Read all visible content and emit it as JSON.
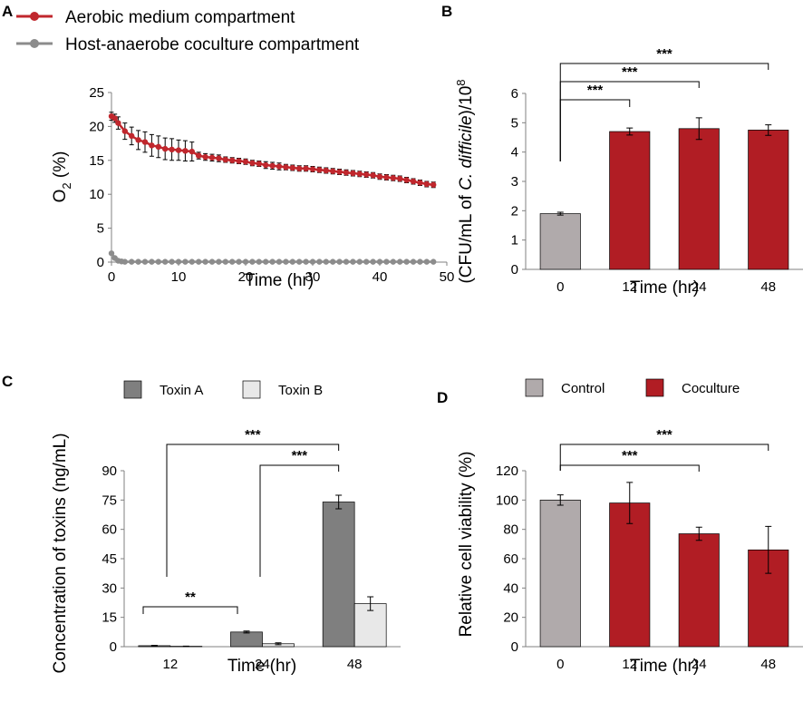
{
  "colors": {
    "aerobic": "#c0272d",
    "anaerobe": "#8c8c8c",
    "grey_bar": "#b0aaab",
    "red_bar": "#b11d24",
    "toxin_a": "#7f7f7f",
    "toxin_b": "#e8e8e8"
  },
  "chart_data": [
    {
      "panel": "A",
      "type": "line",
      "series": [
        {
          "name": "Aerobic medium compartment",
          "x": [
            0,
            0.5,
            1,
            2,
            3,
            4,
            5,
            6,
            7,
            8,
            9,
            10,
            11,
            12,
            13,
            14,
            15,
            16,
            17,
            18,
            19,
            20,
            21,
            22,
            23,
            24,
            25,
            26,
            27,
            28,
            29,
            30,
            31,
            32,
            33,
            34,
            35,
            36,
            37,
            38,
            39,
            40,
            41,
            42,
            43,
            44,
            45,
            46,
            47,
            48
          ],
          "y": [
            21.5,
            21.2,
            20.5,
            19.3,
            18.6,
            18.0,
            17.7,
            17.2,
            17.0,
            16.7,
            16.6,
            16.5,
            16.4,
            16.3,
            15.7,
            15.5,
            15.4,
            15.3,
            15.1,
            15.0,
            14.9,
            14.8,
            14.6,
            14.5,
            14.3,
            14.2,
            14.1,
            14.0,
            13.9,
            13.8,
            13.8,
            13.7,
            13.6,
            13.5,
            13.4,
            13.3,
            13.2,
            13.1,
            13.0,
            12.9,
            12.8,
            12.6,
            12.5,
            12.4,
            12.3,
            12.1,
            11.9,
            11.7,
            11.5,
            11.4
          ],
          "err": [
            0.6,
            0.6,
            0.9,
            1.2,
            1.3,
            1.4,
            1.5,
            1.6,
            1.6,
            1.6,
            1.6,
            1.5,
            1.5,
            1.4,
            0.5,
            0.5,
            0.5,
            0.5,
            0.4,
            0.4,
            0.4,
            0.4,
            0.4,
            0.4,
            0.5,
            0.5,
            0.5,
            0.4,
            0.4,
            0.4,
            0.4,
            0.4,
            0.4,
            0.4,
            0.4,
            0.4,
            0.4,
            0.4,
            0.4,
            0.4,
            0.4,
            0.4,
            0.4,
            0.4,
            0.4,
            0.4,
            0.4,
            0.4,
            0.4,
            0.4
          ]
        },
        {
          "name": "Host-anaerobe coculture compartment",
          "x": [
            0,
            0.5,
            1,
            1.5,
            2,
            3,
            4,
            5,
            6,
            7,
            8,
            9,
            10,
            11,
            12,
            13,
            14,
            15,
            16,
            17,
            18,
            19,
            20,
            21,
            22,
            23,
            24,
            25,
            26,
            27,
            28,
            29,
            30,
            31,
            32,
            33,
            34,
            35,
            36,
            37,
            38,
            39,
            40,
            41,
            42,
            43,
            44,
            45,
            46,
            47,
            48
          ],
          "y": [
            1.3,
            0.6,
            0.2,
            0.1,
            0.05,
            0.05,
            0.05,
            0.05,
            0.05,
            0.05,
            0.05,
            0.05,
            0.05,
            0.05,
            0.05,
            0.05,
            0.05,
            0.05,
            0.05,
            0.05,
            0.05,
            0.05,
            0.05,
            0.05,
            0.05,
            0.05,
            0.05,
            0.05,
            0.05,
            0.05,
            0.05,
            0.05,
            0.05,
            0.05,
            0.05,
            0.05,
            0.05,
            0.05,
            0.05,
            0.05,
            0.05,
            0.05,
            0.05,
            0.05,
            0.05,
            0.05,
            0.05,
            0.05,
            0.05,
            0.05,
            0.05
          ]
        }
      ],
      "xlabel": "Time (hr)",
      "ylabel_main": "O",
      "ylabel_sub": "2",
      "ylabel_rest": " (%)",
      "xlim": [
        0,
        50
      ],
      "ylim": [
        0,
        25
      ],
      "xticks": [
        "0",
        "10",
        "20",
        "30",
        "40",
        "50"
      ],
      "yticks": [
        "0",
        "5",
        "10",
        "15",
        "20",
        "25"
      ]
    },
    {
      "panel": "B",
      "type": "bar",
      "categories": [
        "0",
        "12",
        "24",
        "48"
      ],
      "values": [
        1.9,
        4.7,
        4.8,
        4.75
      ],
      "errors": [
        0.05,
        0.12,
        0.37,
        0.18
      ],
      "xlabel": "Time (hr)",
      "ylabel_pre": "(CFU/mL of ",
      "ylabel_italic": "C. difficile",
      "ylabel_post": ")/10",
      "ylabel_sup": "8",
      "ylim": [
        0,
        6
      ],
      "yticks": [
        "0",
        "1",
        "2",
        "3",
        "4",
        "5",
        "6"
      ],
      "significance": [
        {
          "from": 0,
          "to": 1,
          "label": "***"
        },
        {
          "from": 0,
          "to": 2,
          "label": "***"
        },
        {
          "from": 0,
          "to": 3,
          "label": "***"
        }
      ]
    },
    {
      "panel": "C",
      "type": "bar",
      "categories": [
        "12",
        "24",
        "48"
      ],
      "series": [
        {
          "name": "Toxin A",
          "values": [
            0.5,
            7.5,
            74
          ],
          "errors": [
            0.2,
            0.5,
            3.5
          ]
        },
        {
          "name": "Toxin B",
          "values": [
            0.2,
            1.5,
            22
          ],
          "errors": [
            0.1,
            0.5,
            3.5
          ]
        }
      ],
      "xlabel": "Time (hr)",
      "ylabel": "Concentration of toxins (ng/mL)",
      "ylim": [
        0,
        90
      ],
      "yticks": [
        "0",
        "15",
        "30",
        "45",
        "60",
        "75",
        "90"
      ],
      "significance": [
        {
          "from": 0,
          "to": 1,
          "label": "**"
        },
        {
          "from": 0,
          "to": 2,
          "label": "***"
        },
        {
          "from": 1,
          "to": 2,
          "label": "***"
        }
      ]
    },
    {
      "panel": "D",
      "type": "bar",
      "categories": [
        "0",
        "12",
        "24",
        "48"
      ],
      "values": [
        100,
        98,
        77,
        66
      ],
      "errors": [
        3.5,
        14,
        4.5,
        16
      ],
      "legend": [
        "Control",
        "Coculture"
      ],
      "xlabel": "Time (hr)",
      "ylabel": "Relative cell viability (%)",
      "ylim": [
        0,
        120
      ],
      "yticks": [
        "0",
        "20",
        "40",
        "60",
        "80",
        "100",
        "120"
      ],
      "significance": [
        {
          "from": 0,
          "to": 2,
          "label": "***"
        },
        {
          "from": 0,
          "to": 3,
          "label": "***"
        }
      ]
    }
  ]
}
